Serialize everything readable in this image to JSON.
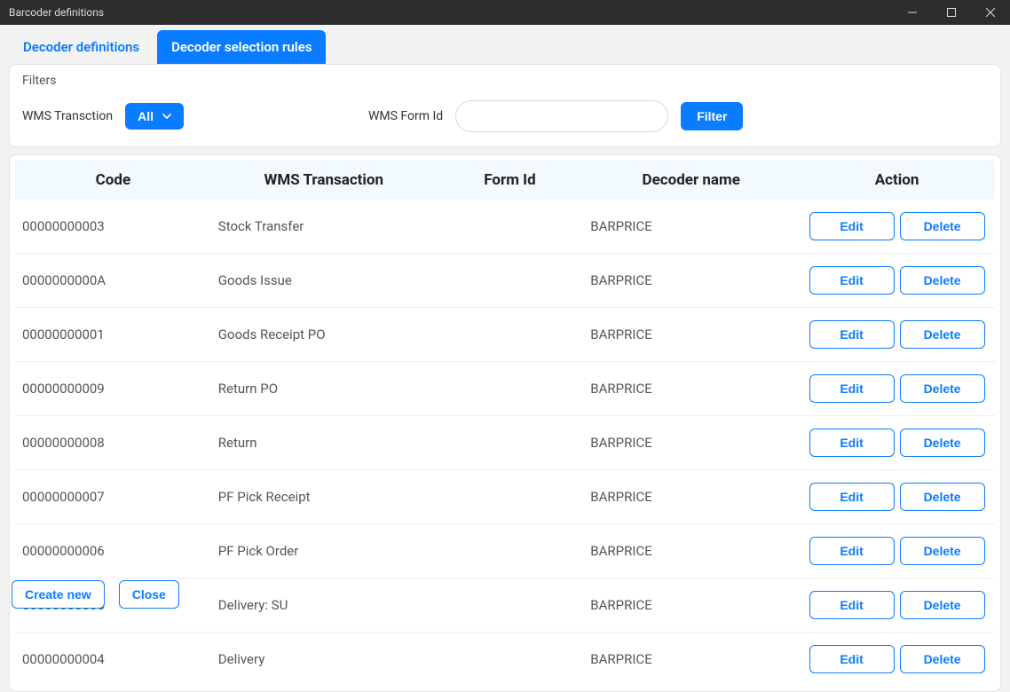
{
  "window": {
    "title": "Barcoder definitions"
  },
  "tabs": {
    "definitions": "Decoder definitions",
    "rules": "Decoder selection rules"
  },
  "filters": {
    "heading": "Filters",
    "wms_transaction_label": "WMS Transction",
    "wms_transaction_value": "All",
    "wms_formid_label": "WMS Form Id",
    "filter_button": "Filter"
  },
  "table": {
    "columns": {
      "code": "Code",
      "transaction": "WMS Transaction",
      "formid": "Form Id",
      "decoder": "Decoder name",
      "action": "Action"
    },
    "edit_label": "Edit",
    "delete_label": "Delete",
    "rows": [
      {
        "code": "00000000003",
        "transaction": "Stock Transfer",
        "formid": "",
        "decoder": "BARPRICE"
      },
      {
        "code": "0000000000A",
        "transaction": "Goods Issue",
        "formid": "",
        "decoder": "BARPRICE"
      },
      {
        "code": "00000000001",
        "transaction": "Goods Receipt PO",
        "formid": "",
        "decoder": "BARPRICE"
      },
      {
        "code": "00000000009",
        "transaction": "Return PO",
        "formid": "",
        "decoder": "BARPRICE"
      },
      {
        "code": "00000000008",
        "transaction": "Return",
        "formid": "",
        "decoder": "BARPRICE"
      },
      {
        "code": "00000000007",
        "transaction": "PF Pick Receipt",
        "formid": "",
        "decoder": "BARPRICE"
      },
      {
        "code": "00000000006",
        "transaction": "PF Pick Order",
        "formid": "",
        "decoder": "BARPRICE"
      },
      {
        "code": "00000000005",
        "transaction": "Delivery: SU",
        "formid": "",
        "decoder": "BARPRICE"
      },
      {
        "code": "00000000004",
        "transaction": "Delivery",
        "formid": "",
        "decoder": "BARPRICE"
      }
    ]
  },
  "footer": {
    "create": "Create new",
    "close": "Close"
  },
  "colors": {
    "accent": "#0a7cff",
    "titlebar": "#2d2d2d",
    "page_bg": "#f2f2f2",
    "header_bg": "#f2f9ff",
    "border": "#e4e4e4",
    "text": "#333",
    "muted": "#555"
  }
}
